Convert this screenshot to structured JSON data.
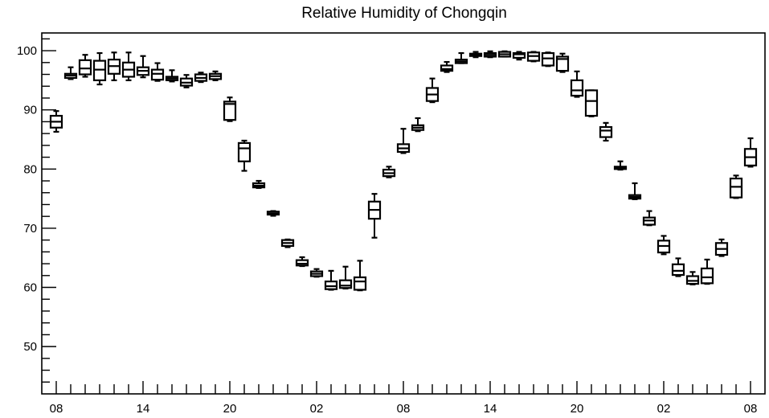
{
  "chart_data": {
    "type": "box",
    "title": "Relative Humidity of Chongqin",
    "xlabel": "",
    "ylabel": "",
    "ylim": [
      42,
      103
    ],
    "y_ticks": [
      50,
      60,
      70,
      80,
      90,
      100
    ],
    "x_tick_labels": [
      "08",
      "14",
      "20",
      "02",
      "08",
      "14",
      "20",
      "02",
      "08"
    ],
    "x_tick_hours": [
      0,
      6,
      12,
      18,
      24,
      30,
      36,
      42,
      48
    ],
    "grid": false,
    "legend": "none",
    "boxes": [
      {
        "hour": 0,
        "min": 86.3,
        "q1": 87.0,
        "median": 88.0,
        "q3": 89.0,
        "max": 89.8
      },
      {
        "hour": 1,
        "min": 95.2,
        "q1": 95.4,
        "median": 95.8,
        "q3": 96.1,
        "max": 97.2
      },
      {
        "hour": 2,
        "min": 95.6,
        "q1": 96.0,
        "median": 97.0,
        "q3": 98.4,
        "max": 99.3
      },
      {
        "hour": 3,
        "min": 94.3,
        "q1": 95.0,
        "median": 96.8,
        "q3": 98.3,
        "max": 99.6
      },
      {
        "hour": 4,
        "min": 95.0,
        "q1": 96.1,
        "median": 97.4,
        "q3": 98.5,
        "max": 99.7
      },
      {
        "hour": 5,
        "min": 95.0,
        "q1": 95.6,
        "median": 96.8,
        "q3": 98.0,
        "max": 99.7
      },
      {
        "hour": 6,
        "min": 95.5,
        "q1": 95.9,
        "median": 96.6,
        "q3": 97.2,
        "max": 99.1
      },
      {
        "hour": 7,
        "min": 94.9,
        "q1": 95.1,
        "median": 96.1,
        "q3": 96.8,
        "max": 97.9
      },
      {
        "hour": 8,
        "min": 94.8,
        "q1": 95.0,
        "median": 95.3,
        "q3": 95.6,
        "max": 96.7
      },
      {
        "hour": 9,
        "min": 93.8,
        "q1": 94.1,
        "median": 94.6,
        "q3": 95.3,
        "max": 95.9
      },
      {
        "hour": 10,
        "min": 94.7,
        "q1": 94.9,
        "median": 95.4,
        "q3": 96.0,
        "max": 96.3
      },
      {
        "hour": 11,
        "min": 95.0,
        "q1": 95.2,
        "median": 95.7,
        "q3": 96.1,
        "max": 96.5
      },
      {
        "hour": 12,
        "min": 88.1,
        "q1": 88.3,
        "median": 91.0,
        "q3": 91.4,
        "max": 92.1
      },
      {
        "hour": 13,
        "min": 79.7,
        "q1": 81.3,
        "median": 83.5,
        "q3": 84.4,
        "max": 84.8
      },
      {
        "hour": 14,
        "min": 76.8,
        "q1": 76.9,
        "median": 77.2,
        "q3": 77.6,
        "max": 78.0
      },
      {
        "hour": 15,
        "min": 72.1,
        "q1": 72.3,
        "median": 72.5,
        "q3": 72.8,
        "max": 72.9
      },
      {
        "hour": 16,
        "min": 66.8,
        "q1": 67.0,
        "median": 67.5,
        "q3": 68.0,
        "max": 68.1
      },
      {
        "hour": 17,
        "min": 63.6,
        "q1": 63.7,
        "median": 64.0,
        "q3": 64.6,
        "max": 65.1
      },
      {
        "hour": 18,
        "min": 61.8,
        "q1": 61.9,
        "median": 62.3,
        "q3": 62.7,
        "max": 63.1
      },
      {
        "hour": 19,
        "min": 59.6,
        "q1": 59.7,
        "median": 60.2,
        "q3": 61.0,
        "max": 62.8
      },
      {
        "hour": 20,
        "min": 59.8,
        "q1": 59.9,
        "median": 60.3,
        "q3": 61.2,
        "max": 63.5
      },
      {
        "hour": 21,
        "min": 59.5,
        "q1": 59.6,
        "median": 61.0,
        "q3": 61.7,
        "max": 64.5
      },
      {
        "hour": 22,
        "min": 68.4,
        "q1": 71.6,
        "median": 73.1,
        "q3": 74.5,
        "max": 75.8
      },
      {
        "hour": 23,
        "min": 78.6,
        "q1": 78.8,
        "median": 79.3,
        "q3": 79.9,
        "max": 80.4
      },
      {
        "hour": 24,
        "min": 82.7,
        "q1": 82.9,
        "median": 83.5,
        "q3": 84.2,
        "max": 86.8
      },
      {
        "hour": 25,
        "min": 86.4,
        "q1": 86.6,
        "median": 87.0,
        "q3": 87.4,
        "max": 88.6
      },
      {
        "hour": 26,
        "min": 91.3,
        "q1": 91.5,
        "median": 92.6,
        "q3": 93.7,
        "max": 95.3
      },
      {
        "hour": 27,
        "min": 96.4,
        "q1": 96.6,
        "median": 96.9,
        "q3": 97.5,
        "max": 98.1
      },
      {
        "hour": 28,
        "min": 97.9,
        "q1": 97.9,
        "median": 98.2,
        "q3": 98.5,
        "max": 99.6
      },
      {
        "hour": 29,
        "min": 98.9,
        "q1": 99.1,
        "median": 99.3,
        "q3": 99.5,
        "max": 99.8
      },
      {
        "hour": 30,
        "min": 98.9,
        "q1": 99.0,
        "median": 99.3,
        "q3": 99.6,
        "max": 99.9
      },
      {
        "hour": 31,
        "min": 99.0,
        "q1": 99.0,
        "median": 99.4,
        "q3": 99.8,
        "max": 99.9
      },
      {
        "hour": 32,
        "min": 98.5,
        "q1": 98.8,
        "median": 99.4,
        "q3": 99.6,
        "max": 99.8
      },
      {
        "hour": 33,
        "min": 98.2,
        "q1": 98.3,
        "median": 99.1,
        "q3": 99.7,
        "max": 99.8
      },
      {
        "hour": 34,
        "min": 97.4,
        "q1": 97.5,
        "median": 98.7,
        "q3": 99.6,
        "max": 99.7
      },
      {
        "hour": 35,
        "min": 96.4,
        "q1": 96.6,
        "median": 98.6,
        "q3": 99.0,
        "max": 99.5
      },
      {
        "hour": 36,
        "min": 92.2,
        "q1": 92.4,
        "median": 93.3,
        "q3": 95.0,
        "max": 96.5
      },
      {
        "hour": 37,
        "min": 88.9,
        "q1": 89.0,
        "median": 91.5,
        "q3": 93.3,
        "max": 93.3
      },
      {
        "hour": 38,
        "min": 84.8,
        "q1": 85.4,
        "median": 86.5,
        "q3": 87.1,
        "max": 87.8
      },
      {
        "hour": 39,
        "min": 79.9,
        "q1": 80.0,
        "median": 80.2,
        "q3": 80.4,
        "max": 81.3
      },
      {
        "hour": 40,
        "min": 74.9,
        "q1": 75.0,
        "median": 75.3,
        "q3": 75.6,
        "max": 77.6
      },
      {
        "hour": 41,
        "min": 70.5,
        "q1": 70.6,
        "median": 71.3,
        "q3": 71.8,
        "max": 72.9
      },
      {
        "hour": 42,
        "min": 65.6,
        "q1": 65.9,
        "median": 67.0,
        "q3": 67.9,
        "max": 68.7
      },
      {
        "hour": 43,
        "min": 61.9,
        "q1": 62.1,
        "median": 62.8,
        "q3": 63.9,
        "max": 64.9
      },
      {
        "hour": 44,
        "min": 60.5,
        "q1": 60.6,
        "median": 61.1,
        "q3": 61.9,
        "max": 62.6
      },
      {
        "hour": 45,
        "min": 60.6,
        "q1": 60.7,
        "median": 61.7,
        "q3": 63.2,
        "max": 64.7
      },
      {
        "hour": 46,
        "min": 65.3,
        "q1": 65.5,
        "median": 66.5,
        "q3": 67.5,
        "max": 68.1
      },
      {
        "hour": 47,
        "min": 75.1,
        "q1": 75.2,
        "median": 77.0,
        "q3": 78.4,
        "max": 78.9
      },
      {
        "hour": 48,
        "min": 80.4,
        "q1": 80.6,
        "median": 82.0,
        "q3": 83.4,
        "max": 85.2
      }
    ]
  }
}
